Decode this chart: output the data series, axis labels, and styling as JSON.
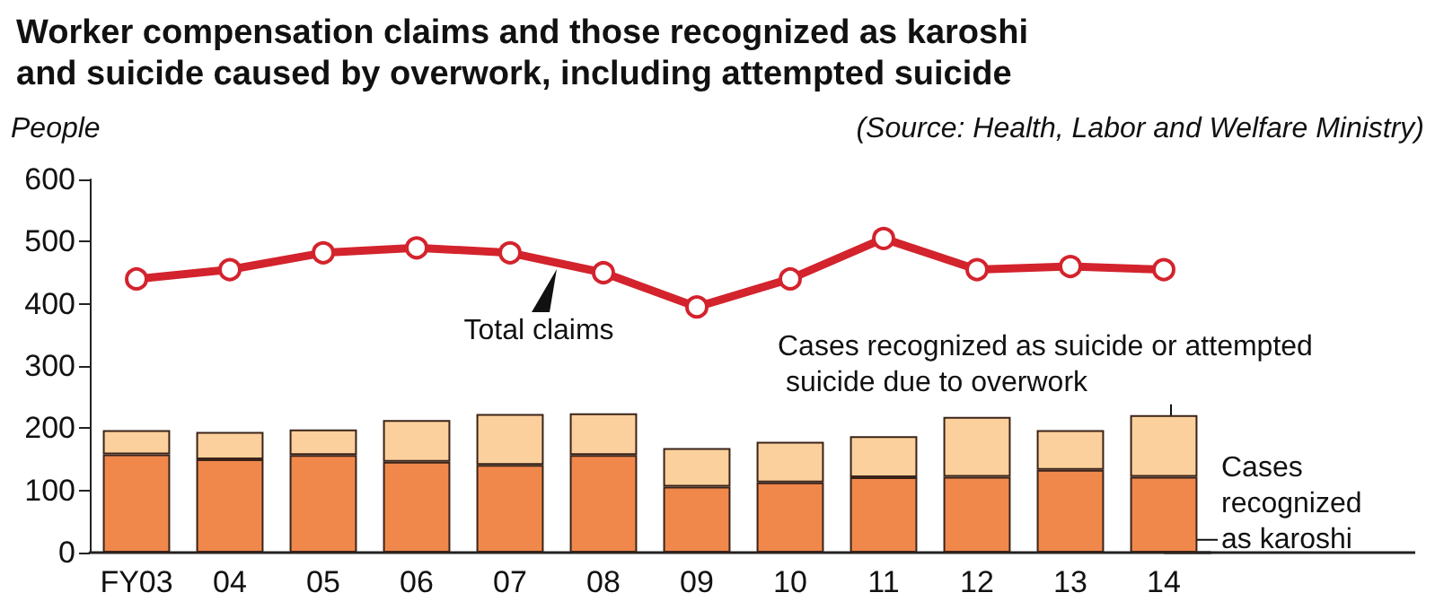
{
  "chart_data": {
    "type": "bar",
    "title": "Worker compensation claims and those recognized as karoshi\nand suicide caused by overwork, including attempted suicide",
    "ylabel": "People",
    "annotations": [
      "(Source: Health, Labor and Welfare Ministry)"
    ],
    "categories": [
      "FY03",
      "04",
      "05",
      "06",
      "07",
      "08",
      "09",
      "10",
      "11",
      "12",
      "13",
      "14"
    ],
    "stacked": true,
    "grid": false,
    "legend": false,
    "marker": "circle",
    "series": [
      {
        "name": "Cases recognized as karoshi",
        "color": "#f0884c",
        "values": [
          158,
          150,
          157,
          146,
          141,
          157,
          106,
          113,
          121,
          122,
          133,
          122
        ]
      },
      {
        "name": "Cases recognized as suicide or attempted suicide due to overwork",
        "color": "#fbd09c",
        "values": [
          39,
          44,
          41,
          67,
          82,
          67,
          62,
          65,
          66,
          96,
          64,
          99
        ]
      },
      {
        "name": "Total claims",
        "type": "line",
        "color": "#d3232d",
        "values": [
          440,
          455,
          482,
          490,
          482,
          450,
          395,
          440,
          505,
          455,
          460,
          455
        ]
      }
    ],
    "ylim": [
      0,
      600
    ],
    "yticks": [
      0,
      100,
      200,
      300,
      400,
      500,
      600
    ]
  }
}
